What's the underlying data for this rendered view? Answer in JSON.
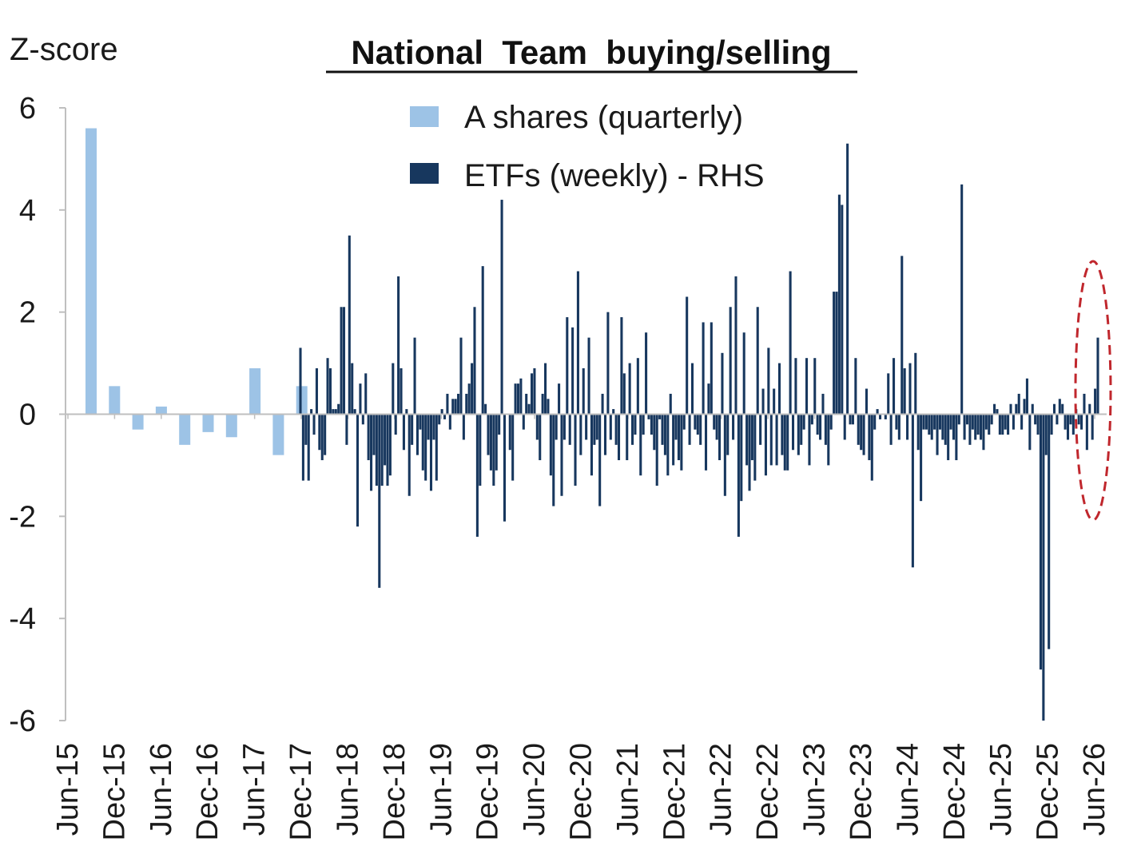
{
  "chart_data": {
    "type": "bar",
    "title": "National  Team  buying/selling",
    "ylabel": "Z-score",
    "ylim": [
      -6,
      6
    ],
    "yticks": [
      "6",
      "4",
      "2",
      "0",
      "-2",
      "-4",
      "-6"
    ],
    "x_ticks": [
      "Jun-15",
      "Dec-15",
      "Jun-16",
      "Dec-16",
      "Jun-17",
      "Dec-17",
      "Jun-18",
      "Dec-18",
      "Jun-19",
      "Dec-19",
      "Jun-20",
      "Dec-20",
      "Jun-21",
      "Dec-21",
      "Jun-22",
      "Dec-22",
      "Jun-23",
      "Dec-23",
      "Jun-24",
      "Dec-24",
      "Jun-25",
      "Dec-25",
      "Jun-26"
    ],
    "legend_position": "top-center",
    "highlight": {
      "shape": "dashed-ellipse",
      "color": "#c0272d",
      "around": "latest weeks (Jun-26)"
    },
    "colors": {
      "a_shares": "#9dc3e6",
      "etfs": "#17375e",
      "axis": "#bfbfbf"
    },
    "series": [
      {
        "name": "A shares (quarterly)",
        "frequency": "quarterly",
        "x": [
          "Jun-15",
          "Sep-15",
          "Dec-15",
          "Mar-16",
          "Jun-16",
          "Sep-16",
          "Dec-16",
          "Mar-17",
          "Jun-17",
          "Sep-17",
          "Dec-17"
        ],
        "values": [
          5.6,
          0.55,
          -0.3,
          0.15,
          -0.6,
          -0.35,
          -0.45,
          0.9,
          -0.8,
          0.55,
          0.0
        ]
      },
      {
        "name": "ETFs (weekly) - RHS",
        "frequency": "weekly",
        "start": "Dec-17",
        "end": "Jun-26",
        "values": [
          1.3,
          -1.3,
          -0.6,
          -1.3,
          0.1,
          -0.4,
          0.9,
          -0.7,
          -0.9,
          -0.8,
          1.1,
          0.9,
          0.1,
          0.1,
          0.2,
          2.1,
          2.1,
          -0.6,
          3.5,
          1.0,
          0.1,
          -2.2,
          0.6,
          -0.2,
          0.8,
          -0.9,
          -1.5,
          -0.8,
          -1.4,
          -3.4,
          -1.4,
          -1.0,
          -1.4,
          -1.2,
          1.0,
          -0.4,
          2.7,
          0.9,
          -0.7,
          0.1,
          -1.6,
          -0.6,
          1.5,
          -0.8,
          -0.3,
          -1.1,
          -1.3,
          -0.5,
          -1.5,
          -0.5,
          -1.3,
          -0.2,
          0.1,
          -0.1,
          0.4,
          -0.3,
          0.3,
          0.3,
          0.4,
          1.5,
          -0.5,
          0.4,
          0.6,
          1.0,
          2.1,
          -2.4,
          -1.4,
          2.9,
          0.2,
          -0.8,
          -1.1,
          -1.4,
          -1.1,
          -0.4,
          4.2,
          -2.1,
          0.0,
          -0.7,
          -1.3,
          0.6,
          0.6,
          0.7,
          -0.3,
          0.4,
          0.2,
          0.8,
          0.9,
          -0.5,
          -0.9,
          0.4,
          1.0,
          0.3,
          -1.2,
          -1.8,
          -0.5,
          0.6,
          -1.6,
          -0.5,
          1.9,
          -0.6,
          1.7,
          -1.4,
          2.8,
          -0.8,
          0.9,
          -0.5,
          1.5,
          -1.2,
          -0.6,
          -0.5,
          -1.8,
          0.4,
          -0.8,
          2.0,
          -0.5,
          0.1,
          -0.6,
          -0.9,
          1.9,
          0.8,
          -0.9,
          1.0,
          -0.6,
          -0.4,
          1.1,
          -1.2,
          -0.4,
          1.6,
          -0.1,
          -0.4,
          -0.7,
          -1.4,
          -0.1,
          -0.6,
          -0.8,
          -1.2,
          0.4,
          -1.0,
          -0.5,
          -0.9,
          -1.1,
          -0.3,
          2.3,
          -0.6,
          1.0,
          -0.3,
          -0.4,
          -0.6,
          1.8,
          -1.1,
          0.6,
          1.8,
          -0.3,
          -0.5,
          -0.9,
          1.2,
          -1.6,
          -0.8,
          2.1,
          -0.5,
          2.7,
          -2.4,
          -1.7,
          1.6,
          -1.0,
          -1.5,
          -0.9,
          -1.3,
          2.1,
          -0.6,
          0.5,
          -1.2,
          1.3,
          -1.0,
          0.5,
          -1.0,
          1.0,
          -0.8,
          -1.1,
          -1.1,
          2.8,
          -0.7,
          1.1,
          -0.8,
          -0.6,
          -0.3,
          1.1,
          -1.0,
          -0.2,
          1.1,
          -0.4,
          -0.5,
          0.4,
          -0.6,
          -1.0,
          -0.3,
          2.4,
          2.4,
          4.3,
          4.1,
          -0.5,
          5.3,
          -0.2,
          -0.2,
          1.1,
          -0.6,
          -0.7,
          -0.8,
          0.5,
          -0.9,
          -1.3,
          -0.3,
          0.1,
          -0.1,
          0.0,
          -0.1,
          0.8,
          -0.6,
          1.1,
          -0.3,
          -0.5,
          3.1,
          0.9,
          -0.5,
          1.0,
          -3.0,
          1.2,
          -0.7,
          -1.7,
          -0.3,
          -0.3,
          -0.4,
          -0.5,
          -0.3,
          -0.8,
          -0.3,
          -0.5,
          -0.6,
          -0.9,
          -0.3,
          -0.5,
          -0.9,
          -0.2,
          4.5,
          -0.5,
          -0.2,
          -0.6,
          -0.3,
          -0.5,
          -0.4,
          -0.5,
          -0.7,
          -0.3,
          -0.4,
          -0.2,
          0.2,
          0.1,
          -0.4,
          -0.4,
          -0.3,
          -0.4,
          0.2,
          -0.3,
          0.2,
          0.4,
          -0.3,
          0.3,
          0.7,
          -0.7,
          0.2,
          -0.2,
          -0.4,
          -5.0,
          -6.0,
          -0.8,
          -4.6,
          -0.4,
          0.2,
          -0.2,
          0.3,
          0.2,
          -0.3,
          -0.5,
          -0.2,
          -0.4,
          0.1,
          -0.2,
          -0.3,
          0.4,
          -0.7,
          0.2,
          -0.5,
          0.5,
          1.5
        ]
      }
    ]
  }
}
